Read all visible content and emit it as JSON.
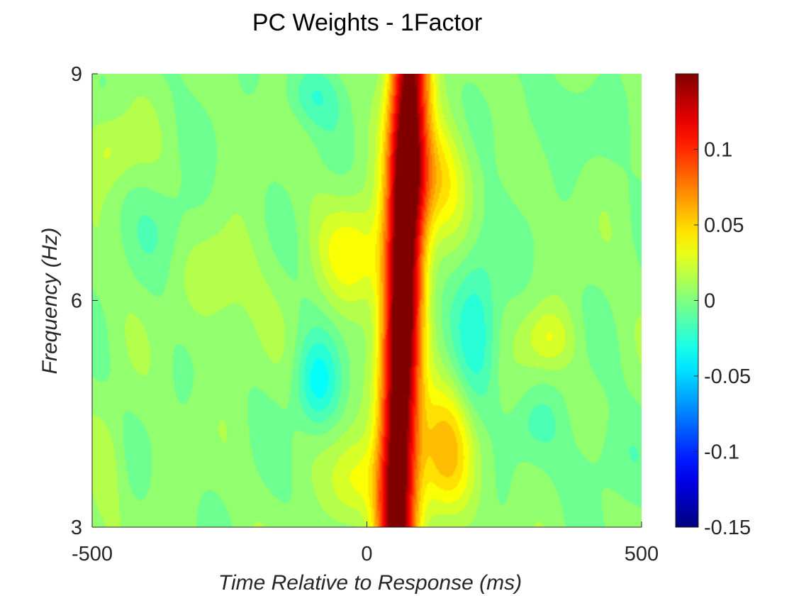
{
  "chart_data": {
    "type": "heatmap",
    "title": "PC Weights - 1Factor",
    "xlabel": "Time Relative to Response (ms)",
    "ylabel": "Frequency (Hz)",
    "xlim": [
      -500,
      500
    ],
    "ylim": [
      3,
      9
    ],
    "xticks": [
      -500,
      0,
      500
    ],
    "xtick_labels": [
      "-500",
      "0",
      "500"
    ],
    "yticks": [
      3,
      6,
      9
    ],
    "ytick_labels": [
      "3",
      "6",
      "9"
    ],
    "colormap": "jet",
    "clim": [
      -0.15,
      0.15
    ],
    "colorbar_ticks": [
      -0.15,
      -0.1,
      -0.05,
      0,
      0.05,
      0.1
    ],
    "colorbar_tick_labels": [
      "-0.15",
      "-0.1",
      "-0.05",
      "0",
      "0.05",
      "0.1"
    ],
    "components": [
      {
        "kind": "ridge",
        "x0": 65,
        "x_slope": 4,
        "width": 34,
        "amp": 0.17
      },
      {
        "kind": "blob",
        "x": 140,
        "y": 4.0,
        "sx": 55,
        "sy": 0.9,
        "amp": 0.05
      },
      {
        "kind": "blob",
        "x": 120,
        "y": 7.6,
        "sx": 60,
        "sy": 0.8,
        "amp": 0.045
      },
      {
        "kind": "blob",
        "x": -20,
        "y": 6.6,
        "sx": 60,
        "sy": 0.7,
        "amp": 0.035
      },
      {
        "kind": "blob",
        "x": -20,
        "y": 3.6,
        "sx": 50,
        "sy": 0.6,
        "amp": 0.03
      },
      {
        "kind": "blob",
        "x": -90,
        "y": 4.9,
        "sx": 40,
        "sy": 0.6,
        "amp": -0.035
      },
      {
        "kind": "blob",
        "x": -100,
        "y": 8.7,
        "sx": 50,
        "sy": 0.4,
        "amp": -0.02
      },
      {
        "kind": "blob",
        "x": 200,
        "y": 5.7,
        "sx": 40,
        "sy": 1.3,
        "amp": -0.028
      },
      {
        "kind": "blob",
        "x": 330,
        "y": 5.5,
        "sx": 45,
        "sy": 0.4,
        "amp": 0.025
      },
      {
        "kind": "blob",
        "x": 310,
        "y": 4.4,
        "sx": 45,
        "sy": 0.4,
        "amp": -0.012
      },
      {
        "kind": "blob",
        "x": -260,
        "y": 6.3,
        "sx": 70,
        "sy": 0.8,
        "amp": 0.015
      },
      {
        "kind": "blob",
        "x": -470,
        "y": 8.0,
        "sx": 50,
        "sy": 0.5,
        "amp": 0.02
      },
      {
        "kind": "blob",
        "x": -470,
        "y": 3.8,
        "sx": 30,
        "sy": 0.8,
        "amp": 0.012
      },
      {
        "kind": "blob",
        "x": -350,
        "y": 7.0,
        "sx": 70,
        "sy": 0.6,
        "amp": -0.01
      },
      {
        "kind": "blob",
        "x": 430,
        "y": 3.9,
        "sx": 70,
        "sy": 0.6,
        "amp": -0.012
      },
      {
        "kind": "blob",
        "x": 350,
        "y": 8.4,
        "sx": 100,
        "sy": 0.5,
        "amp": -0.01
      }
    ]
  }
}
